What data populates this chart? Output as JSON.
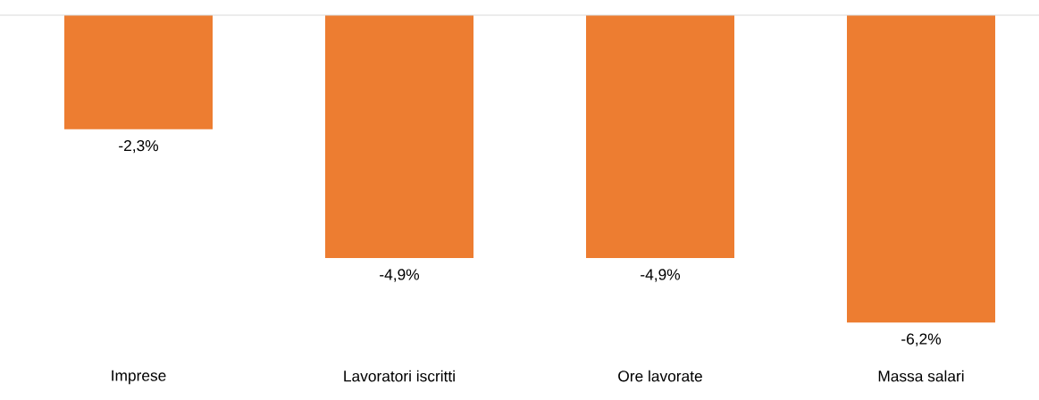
{
  "chart_data": {
    "type": "bar",
    "categories": [
      "Imprese",
      "Lavoratori iscritti",
      "Ore lavorate",
      "Massa salari"
    ],
    "values": [
      -2.3,
      -4.9,
      -4.9,
      -6.2
    ],
    "value_labels": [
      "-2,3%",
      "-4,9%",
      "-4,9%",
      "-6,2%"
    ],
    "color": "#ed7d31",
    "tick_labels": "x"
  }
}
